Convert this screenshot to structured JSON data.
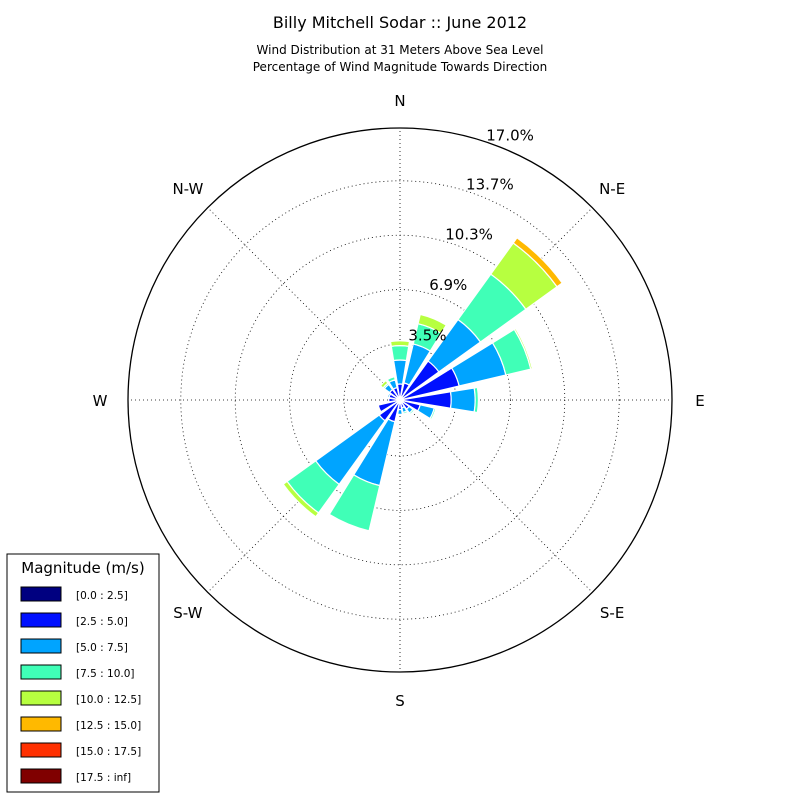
{
  "chart_data": {
    "type": "windrose",
    "title": "Billy Mitchell Sodar :: June 2012",
    "subtitle_line1": "Wind Distribution at 31 Meters Above Sea Level",
    "subtitle_line2": "Percentage of Wind Magnitude Towards Direction",
    "directions": [
      "N",
      "N-E",
      "E",
      "S-E",
      "S",
      "S-W",
      "W",
      "N-W"
    ],
    "ring_labels": [
      "3.5%",
      "6.9%",
      "10.3%",
      "13.7%",
      "17.0%"
    ],
    "ring_values": [
      3.5,
      6.9,
      10.3,
      13.7,
      17.0
    ],
    "rmax": 17.0,
    "grid": true,
    "legend_position": "bottom-left",
    "legend_title": "Magnitude (m/s)",
    "bins": [
      {
        "label": "[0.0 : 2.5]",
        "color": "#000080"
      },
      {
        "label": "[2.5 : 5.0]",
        "color": "#0010ff"
      },
      {
        "label": "[5.0 : 7.5]",
        "color": "#00a4ff"
      },
      {
        "label": "[7.5 : 10.0]",
        "color": "#40ffb7"
      },
      {
        "label": "[10.0 : 12.5]",
        "color": "#b7ff40"
      },
      {
        "label": "[12.5 : 15.0]",
        "color": "#ffb900"
      },
      {
        "label": "[15.0 : 17.5]",
        "color": "#ff3000"
      },
      {
        "label": "[17.5 : inf]",
        "color": "#800000"
      }
    ],
    "sector_centers_deg": [
      0,
      22.5,
      45,
      67.5,
      90,
      112.5,
      135,
      157.5,
      180,
      202.5,
      225,
      247.5,
      270,
      292.5,
      315,
      337.5
    ],
    "sector_values": [
      [
        0.1,
        0.9,
        1.5,
        0.9,
        0.3,
        0,
        0,
        0
      ],
      [
        0.1,
        1.0,
        2.5,
        1.3,
        0.6,
        0,
        0,
        0
      ],
      [
        0.1,
        2.9,
        3.2,
        3.5,
        2.4,
        0.4,
        0,
        0
      ],
      [
        0.1,
        3.7,
        3.0,
        1.6,
        0.1,
        0,
        0,
        0
      ],
      [
        0.1,
        3.1,
        1.5,
        0.2,
        0,
        0,
        0,
        0
      ],
      [
        0.1,
        1.2,
        0.9,
        0.1,
        0,
        0,
        0,
        0
      ],
      [
        0.1,
        0.6,
        0.3,
        0.1,
        0,
        0,
        0,
        0
      ],
      [
        0.1,
        0.4,
        0.3,
        0.1,
        0,
        0,
        0,
        0
      ],
      [
        0.1,
        0.5,
        0.3,
        0,
        0,
        0,
        0,
        0
      ],
      [
        0.1,
        1.3,
        4.1,
        2.9,
        0,
        0,
        0,
        0
      ],
      [
        0.1,
        1.5,
        4.9,
        2.2,
        0.3,
        0,
        0,
        0
      ],
      [
        0.1,
        1.3,
        0,
        0,
        0,
        0,
        0,
        0
      ],
      [
        0.1,
        0.6,
        0,
        0,
        0,
        0,
        0,
        0
      ],
      [
        0.1,
        0.6,
        0.1,
        0,
        0,
        0,
        0,
        0
      ],
      [
        0.1,
        0.7,
        0.4,
        0.1,
        0.2,
        0,
        0,
        0
      ],
      [
        0.1,
        0.7,
        0.5,
        0.2,
        0,
        0,
        0,
        0
      ]
    ]
  }
}
